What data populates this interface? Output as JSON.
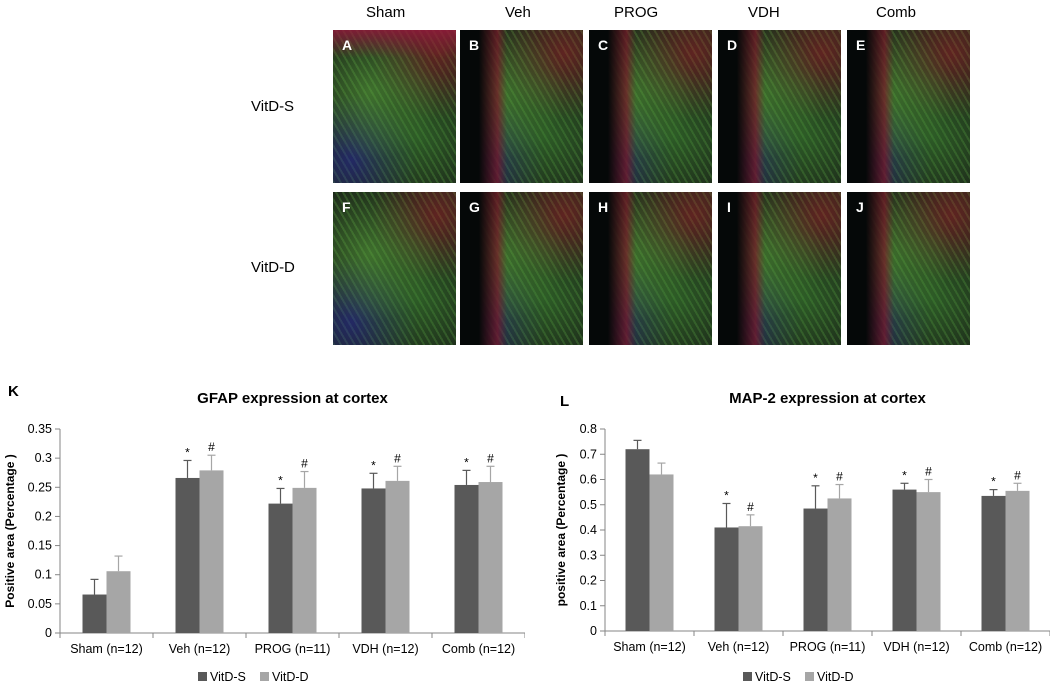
{
  "micrographs": {
    "columns": [
      "Sham",
      "Veh",
      "PROG",
      "VDH",
      "Comb"
    ],
    "rows": [
      "VitD-S",
      "VitD-D"
    ],
    "panel_letters": [
      [
        "A",
        "B",
        "C",
        "D",
        "E"
      ],
      [
        "F",
        "G",
        "H",
        "I",
        "J"
      ]
    ]
  },
  "colors": {
    "vitd_s": "#595959",
    "vitd_d": "#a6a6a6"
  },
  "chart_data": [
    {
      "type": "bar",
      "panel_label": "K",
      "title": "GFAP expression at cortex",
      "xlabel": "",
      "ylabel": "Positive area (Percentage )",
      "categories": [
        "Sham (n=12)",
        "Veh (n=12)",
        "PROG (n=11)",
        "VDH (n=12)",
        "Comb (n=12)"
      ],
      "ylim": [
        0,
        0.35
      ],
      "yticks": [
        0,
        0.05,
        0.1,
        0.15,
        0.2,
        0.25,
        0.3,
        0.35
      ],
      "ytick_labels": [
        "0",
        "0.05",
        "0.1",
        "0.15",
        "0.2",
        "0.25",
        "0.3",
        "0.35"
      ],
      "series": [
        {
          "name": "VitD-S",
          "values": [
            0.066,
            0.266,
            0.222,
            0.248,
            0.254
          ],
          "errors": [
            0.026,
            0.03,
            0.026,
            0.026,
            0.025
          ],
          "markers": [
            "",
            "*",
            "*",
            "*",
            "*"
          ]
        },
        {
          "name": "VitD-D",
          "values": [
            0.106,
            0.279,
            0.249,
            0.261,
            0.259
          ],
          "errors": [
            0.026,
            0.026,
            0.028,
            0.025,
            0.027
          ],
          "markers": [
            "",
            "#",
            "#",
            "#",
            "#"
          ]
        }
      ],
      "legend": "bottom",
      "grid": false
    },
    {
      "type": "bar",
      "panel_label": "L",
      "title": "MAP-2 expression at cortex",
      "xlabel": "",
      "ylabel": "positive area (Percentage )",
      "categories": [
        "Sham (n=12)",
        "Veh (n=12)",
        "PROG (n=11)",
        "VDH (n=12)",
        "Comb (n=12)"
      ],
      "ylim": [
        0,
        0.8
      ],
      "yticks": [
        0,
        0.1,
        0.2,
        0.3,
        0.4,
        0.5,
        0.6,
        0.7,
        0.8
      ],
      "ytick_labels": [
        "0",
        "0.1",
        "0.2",
        "0.3",
        "0.4",
        "0.5",
        "0.6",
        "0.7",
        "0.8"
      ],
      "series": [
        {
          "name": "VitD-S",
          "values": [
            0.72,
            0.41,
            0.485,
            0.56,
            0.535
          ],
          "errors": [
            0.035,
            0.095,
            0.09,
            0.025,
            0.025
          ],
          "markers": [
            "",
            "*",
            "*",
            "*",
            "*"
          ]
        },
        {
          "name": "VitD-D",
          "values": [
            0.62,
            0.415,
            0.525,
            0.55,
            0.555
          ],
          "errors": [
            0.045,
            0.045,
            0.055,
            0.05,
            0.03
          ],
          "markers": [
            "",
            "#",
            "#",
            "#",
            "#"
          ]
        }
      ],
      "legend": "bottom",
      "grid": false
    }
  ]
}
